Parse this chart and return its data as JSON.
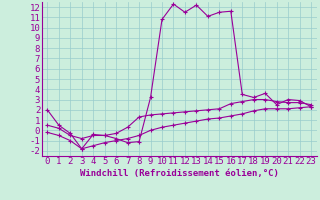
{
  "xlabel": "Windchill (Refroidissement éolien,°C)",
  "background_color": "#cceedd",
  "grid_color": "#99cccc",
  "line_color": "#990099",
  "xlim": [
    -0.5,
    23.5
  ],
  "ylim": [
    -2.5,
    12.5
  ],
  "xticks": [
    0,
    1,
    2,
    3,
    4,
    5,
    6,
    7,
    8,
    9,
    10,
    11,
    12,
    13,
    14,
    15,
    16,
    17,
    18,
    19,
    20,
    21,
    22,
    23
  ],
  "yticks": [
    -2,
    -1,
    0,
    1,
    2,
    3,
    4,
    5,
    6,
    7,
    8,
    9,
    10,
    11,
    12
  ],
  "line1_x": [
    0,
    1,
    2,
    3,
    4,
    5,
    6,
    7,
    8,
    9,
    10,
    11,
    12,
    13,
    14,
    15,
    16,
    17,
    18,
    19,
    20,
    21,
    22,
    23
  ],
  "line1_y": [
    2.0,
    0.5,
    -0.3,
    -1.8,
    -0.4,
    -0.5,
    -0.8,
    -1.2,
    -1.1,
    3.2,
    10.8,
    12.3,
    11.5,
    12.2,
    11.1,
    11.5,
    11.6,
    3.5,
    3.2,
    3.6,
    2.5,
    3.0,
    2.9,
    2.3
  ],
  "line2_x": [
    0,
    1,
    2,
    3,
    4,
    5,
    6,
    7,
    8,
    9,
    10,
    11,
    12,
    13,
    14,
    15,
    16,
    17,
    18,
    19,
    20,
    21,
    22,
    23
  ],
  "line2_y": [
    0.5,
    0.2,
    -0.5,
    -0.8,
    -0.5,
    -0.5,
    -0.3,
    0.3,
    1.3,
    1.5,
    1.6,
    1.7,
    1.8,
    1.9,
    2.0,
    2.1,
    2.6,
    2.8,
    3.0,
    3.0,
    2.8,
    2.7,
    2.7,
    2.5
  ],
  "line3_x": [
    0,
    1,
    2,
    3,
    4,
    5,
    6,
    7,
    8,
    9,
    10,
    11,
    12,
    13,
    14,
    15,
    16,
    17,
    18,
    19,
    20,
    21,
    22,
    23
  ],
  "line3_y": [
    -0.2,
    -0.5,
    -1.0,
    -1.8,
    -1.5,
    -1.2,
    -1.0,
    -0.8,
    -0.5,
    0.0,
    0.3,
    0.5,
    0.7,
    0.9,
    1.1,
    1.2,
    1.4,
    1.6,
    1.9,
    2.1,
    2.1,
    2.1,
    2.2,
    2.3
  ],
  "marker_size": 2.5,
  "line_width": 0.8,
  "font_size": 6.5
}
